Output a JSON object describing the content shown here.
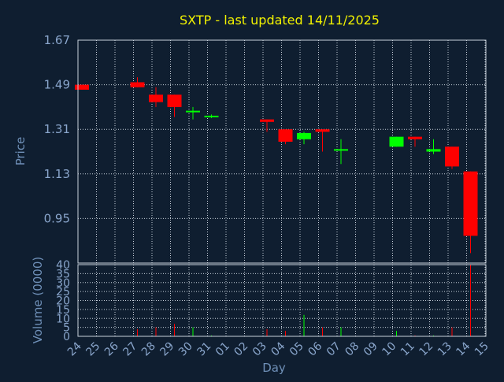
{
  "chart_data": {
    "type": "candlestick",
    "title": "SXTP - last updated 14/11/2025",
    "xlabel": "Day",
    "ylabel_price": "Price",
    "ylabel_volume": "Volume (0000)",
    "x_ticks": [
      "24",
      "25",
      "26",
      "27",
      "28",
      "29",
      "30",
      "31",
      "01",
      "02",
      "03",
      "04",
      "05",
      "06",
      "07",
      "08",
      "09",
      "10",
      "11",
      "12",
      "13",
      "14",
      "15"
    ],
    "price_ylim": [
      0.77,
      1.67
    ],
    "price_ticks": [
      "1.67",
      "1.49",
      "1.31",
      "1.13",
      "0.95"
    ],
    "volume_ylim": [
      0,
      40
    ],
    "volume_ticks": [
      "40",
      "35",
      "30",
      "25",
      "20",
      "15",
      "10",
      "5",
      "0"
    ],
    "grid": true,
    "colors": {
      "up": "#00ff00",
      "down": "#ff0000",
      "title": "#f2f200",
      "axis": "#6f90b8",
      "background": "#0f1e30",
      "grid": "#c8d2dc"
    },
    "candles": [
      {
        "d": 0,
        "o": 1.49,
        "h": 1.49,
        "l": 1.47,
        "c": 1.47,
        "v": 0
      },
      {
        "d": 3,
        "o": 1.5,
        "h": 1.52,
        "l": 1.48,
        "c": 1.48,
        "v": 4
      },
      {
        "d": 4,
        "o": 1.45,
        "h": 1.48,
        "l": 1.4,
        "c": 1.42,
        "v": 5
      },
      {
        "d": 5,
        "o": 1.45,
        "h": 1.45,
        "l": 1.36,
        "c": 1.4,
        "v": 7
      },
      {
        "d": 6,
        "o": 1.38,
        "h": 1.4,
        "l": 1.35,
        "c": 1.385,
        "v": 5
      },
      {
        "d": 7,
        "o": 1.36,
        "h": 1.37,
        "l": 1.355,
        "c": 1.365,
        "v": 0.5
      },
      {
        "d": 10,
        "o": 1.35,
        "h": 1.35,
        "l": 1.3,
        "c": 1.34,
        "v": 4
      },
      {
        "d": 11,
        "o": 1.31,
        "h": 1.31,
        "l": 1.25,
        "c": 1.26,
        "v": 3
      },
      {
        "d": 12,
        "o": 1.27,
        "h": 1.3,
        "l": 1.25,
        "c": 1.295,
        "v": 12
      },
      {
        "d": 13,
        "o": 1.31,
        "h": 1.31,
        "l": 1.22,
        "c": 1.3,
        "v": 5
      },
      {
        "d": 14,
        "o": 1.225,
        "h": 1.27,
        "l": 1.17,
        "c": 1.23,
        "v": 5
      },
      {
        "d": 17,
        "o": 1.24,
        "h": 1.28,
        "l": 1.24,
        "c": 1.28,
        "v": 3
      },
      {
        "d": 18,
        "o": 1.28,
        "h": 1.28,
        "l": 1.24,
        "c": 1.27,
        "v": 0.5
      },
      {
        "d": 19,
        "o": 1.22,
        "h": 1.27,
        "l": 1.21,
        "c": 1.23,
        "v": 0.5
      },
      {
        "d": 20,
        "o": 1.24,
        "h": 1.24,
        "l": 1.15,
        "c": 1.16,
        "v": 5
      },
      {
        "d": 21,
        "o": 1.14,
        "h": 1.14,
        "l": 0.81,
        "c": 0.88,
        "v": 40
      }
    ]
  }
}
